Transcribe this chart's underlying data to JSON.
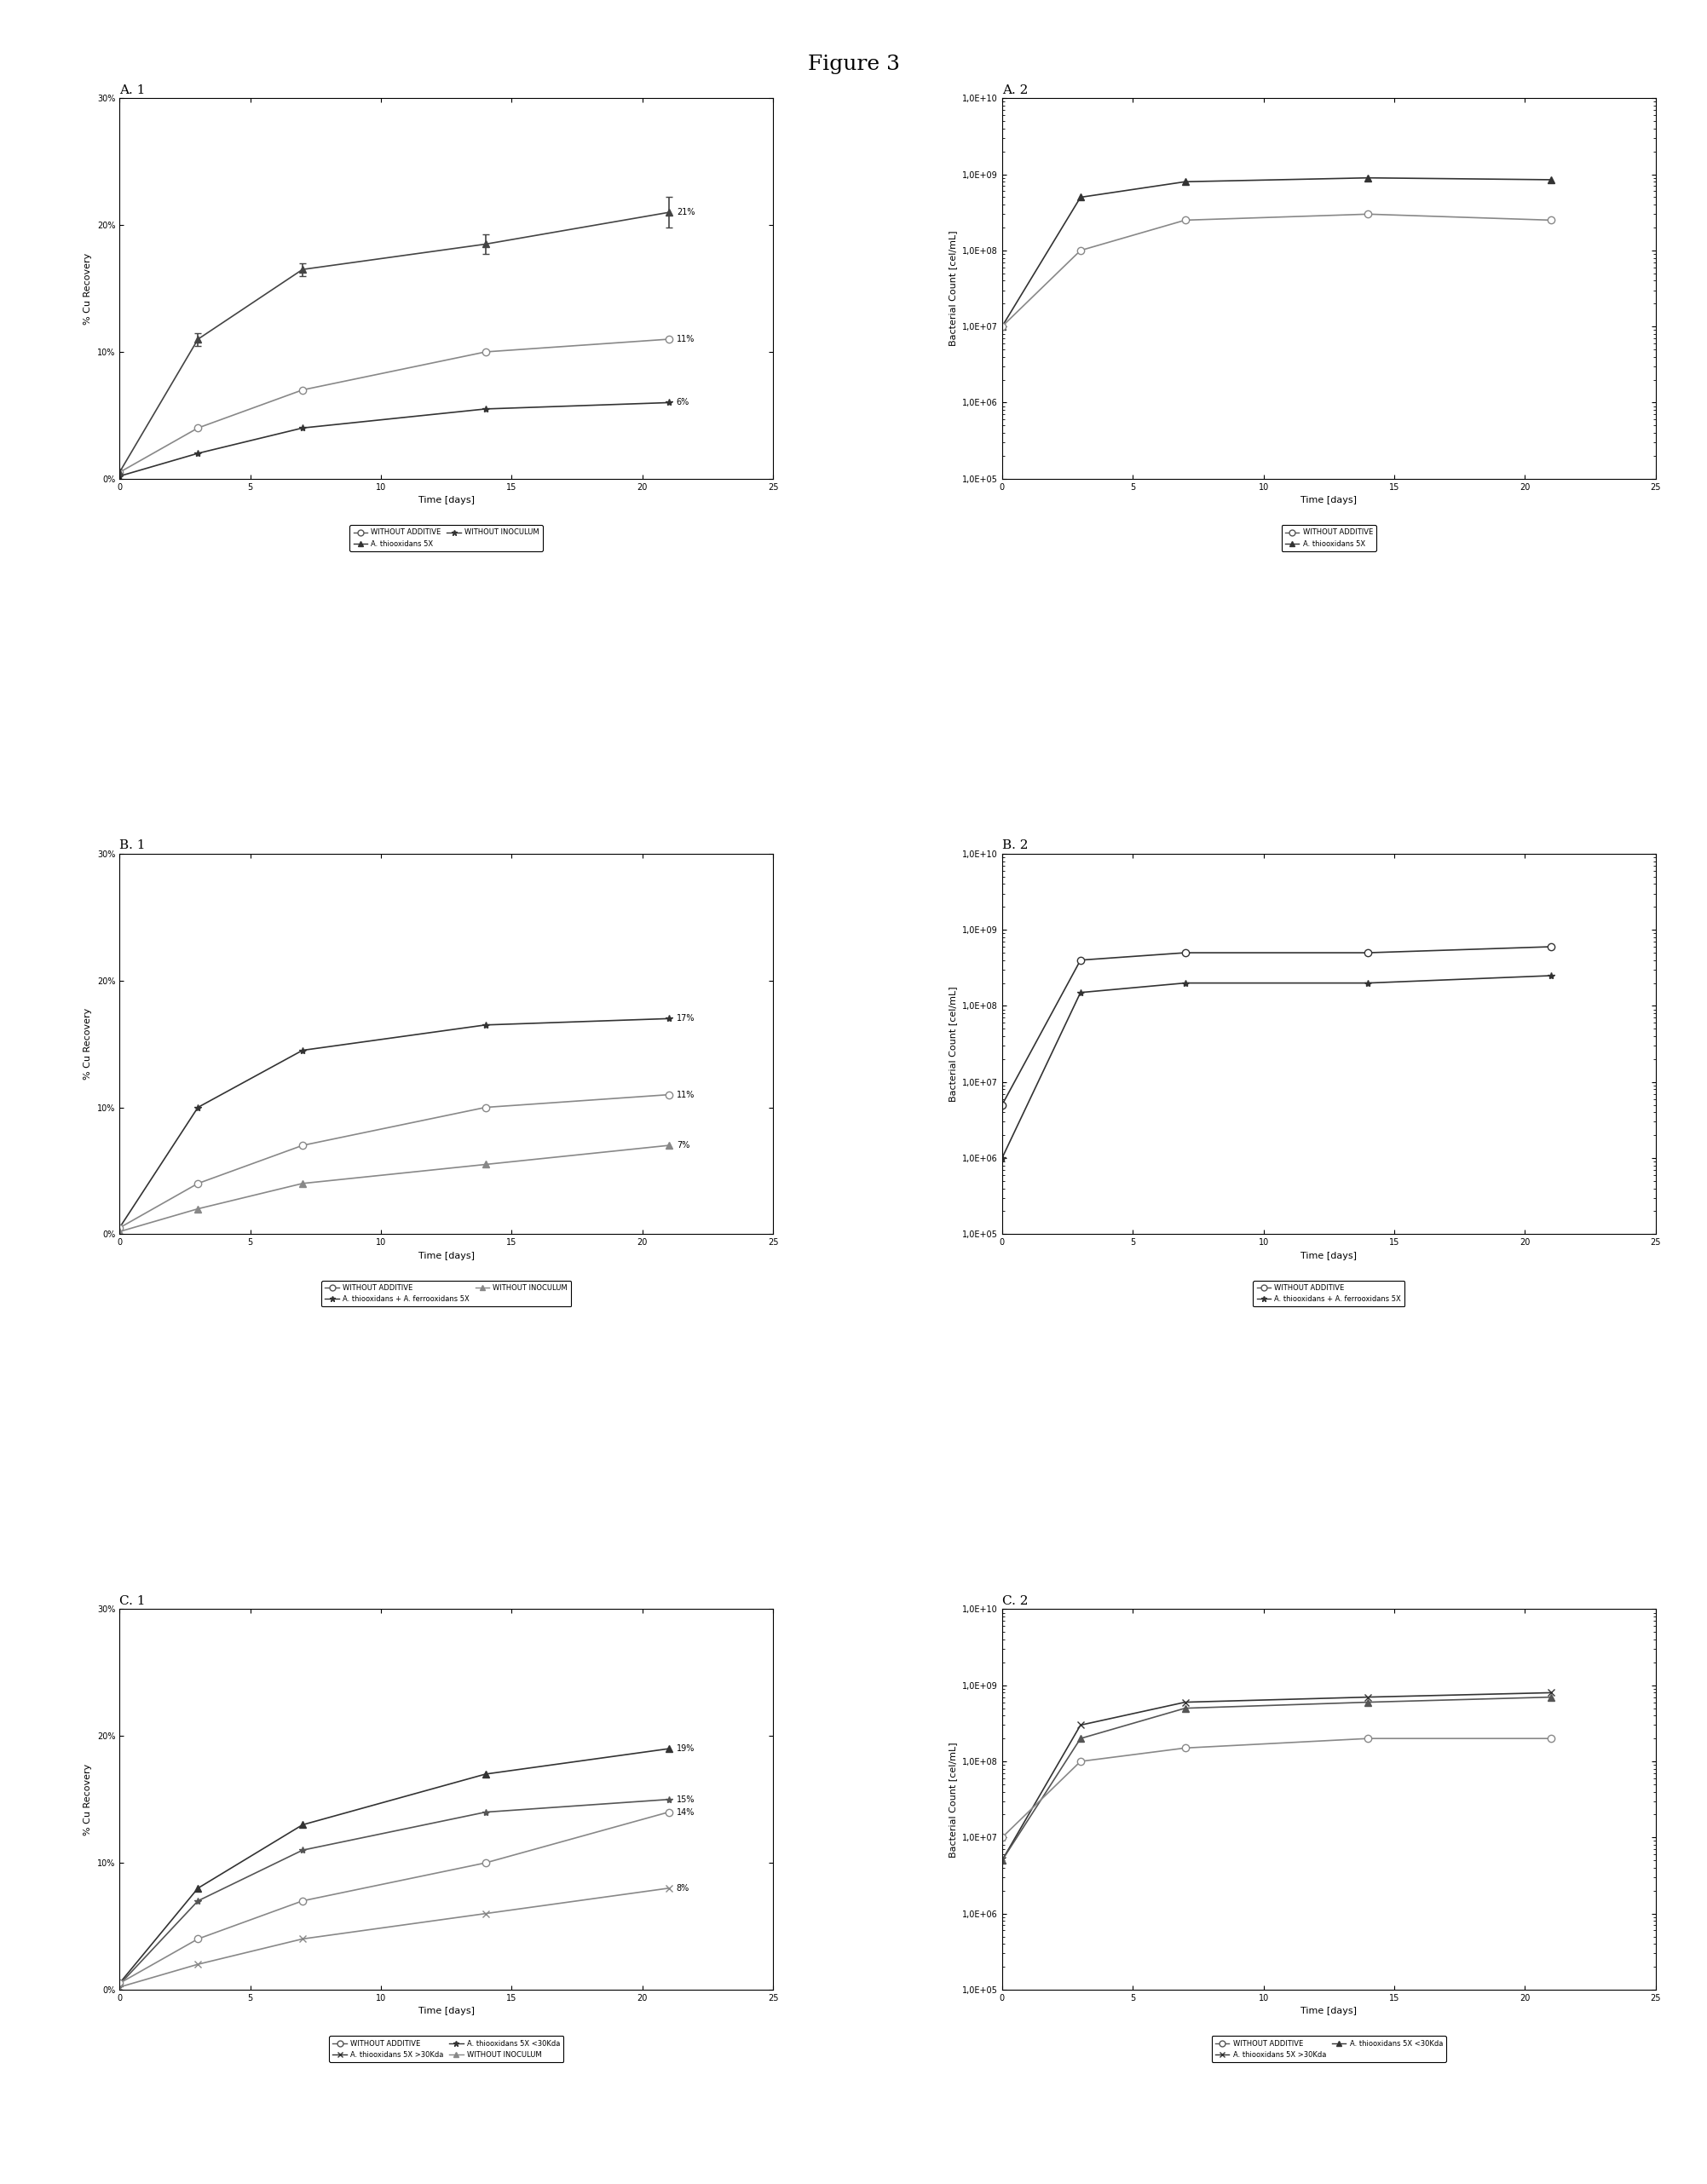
{
  "figure_title": "Figure 3",
  "background_color": "#ffffff",
  "panels": {
    "A1": {
      "title": "A. 1",
      "xlabel": "Time [days]",
      "ylabel": "% Cu Recovery",
      "ylim": [
        0,
        0.3
      ],
      "xlim": [
        0,
        25
      ],
      "yticks": [
        0.0,
        0.1,
        0.2,
        0.3
      ],
      "ytick_labels": [
        "0%",
        "10%",
        "20%",
        "30%"
      ],
      "xticks": [
        0,
        5,
        10,
        15,
        20,
        25
      ],
      "series": [
        {
          "label": "A. thiooxidans 5X",
          "x": [
            0,
            3,
            7,
            14,
            21
          ],
          "y": [
            0.005,
            0.11,
            0.165,
            0.185,
            0.21
          ],
          "yerr": [
            0.001,
            0.005,
            0.005,
            0.008,
            0.012
          ],
          "marker": "^",
          "color": "#444444",
          "linestyle": "-",
          "markersize": 6,
          "label_end": "21%"
        },
        {
          "label": "WITHOUT ADDITIVE",
          "x": [
            0,
            3,
            7,
            14,
            21
          ],
          "y": [
            0.005,
            0.04,
            0.07,
            0.1,
            0.11
          ],
          "yerr": null,
          "marker": "o",
          "color": "#888888",
          "linestyle": "-",
          "markersize": 6,
          "markerfacecolor": "white",
          "label_end": "11%"
        },
        {
          "label": "WITHOUT INOCULUM",
          "x": [
            0,
            3,
            7,
            14,
            21
          ],
          "y": [
            0.002,
            0.02,
            0.04,
            0.055,
            0.06
          ],
          "yerr": null,
          "marker": "*",
          "color": "#333333",
          "linestyle": "-",
          "markersize": 6,
          "label_end": "6%"
        }
      ],
      "legend_entries": [
        {
          "label": "WITHOUT ADDITIVE",
          "marker": "o",
          "markerfacecolor": "white",
          "color": "#555555"
        },
        {
          "label": "A. thiooxidans 5X",
          "marker": "^",
          "color": "#333333"
        },
        {
          "label": "WITHOUT INOCULUM",
          "marker": "*",
          "color": "#333333"
        }
      ]
    },
    "A2": {
      "title": "A. 2",
      "xlabel": "Time [days]",
      "ylabel": "Bacterial Count [cel/mL]",
      "ylim_log": [
        100000.0,
        10000000000.0
      ],
      "xlim": [
        0,
        25
      ],
      "xticks": [
        0,
        5,
        10,
        15,
        20,
        25
      ],
      "yticks_log": [
        100000.0,
        1000000.0,
        10000000.0,
        100000000.0,
        1000000000.0,
        10000000000.0
      ],
      "ytick_labels_log": [
        "1,0E+05",
        "1,0E+06",
        "1,0E+07",
        "1,0E+08",
        "1,0E+09",
        "1,0E+10"
      ],
      "series": [
        {
          "label": "A. thiooxidans 5X",
          "x": [
            0,
            3,
            7,
            14,
            21
          ],
          "y": [
            10000000.0,
            500000000.0,
            800000000.0,
            900000000.0,
            850000000.0
          ],
          "marker": "^",
          "color": "#333333",
          "linestyle": "-",
          "markersize": 6
        },
        {
          "label": "WITHOUT ADDITIVE",
          "x": [
            0,
            3,
            7,
            14,
            21
          ],
          "y": [
            10000000.0,
            100000000.0,
            250000000.0,
            300000000.0,
            250000000.0
          ],
          "marker": "o",
          "color": "#888888",
          "linestyle": "-",
          "markersize": 6,
          "markerfacecolor": "white"
        }
      ],
      "legend_entries": [
        {
          "label": "WITHOUT ADDITIVE",
          "marker": "o",
          "markerfacecolor": "white",
          "color": "#555555"
        },
        {
          "label": "A. thiooxidans 5X",
          "marker": "^",
          "color": "#333333"
        }
      ]
    },
    "B1": {
      "title": "B. 1",
      "xlabel": "Time [days]",
      "ylabel": "% Cu Recovery",
      "ylim": [
        0,
        0.3
      ],
      "xlim": [
        0,
        25
      ],
      "yticks": [
        0.0,
        0.1,
        0.2,
        0.3
      ],
      "ytick_labels": [
        "0%",
        "10%",
        "20%",
        "30%"
      ],
      "xticks": [
        0,
        5,
        10,
        15,
        20,
        25
      ],
      "series": [
        {
          "label": "A. thiooxidans + A. ferrooxidans 5X",
          "x": [
            0,
            3,
            7,
            14,
            21
          ],
          "y": [
            0.005,
            0.1,
            0.145,
            0.165,
            0.17
          ],
          "yerr": null,
          "marker": "*",
          "color": "#333333",
          "linestyle": "-",
          "markersize": 6,
          "label_end": "17%"
        },
        {
          "label": "WITHOUT ADDITIVE",
          "x": [
            0,
            3,
            7,
            14,
            21
          ],
          "y": [
            0.005,
            0.04,
            0.07,
            0.1,
            0.11
          ],
          "yerr": null,
          "marker": "o",
          "color": "#888888",
          "linestyle": "-",
          "markersize": 6,
          "markerfacecolor": "white",
          "label_end": "11%"
        },
        {
          "label": "WITHOUT INOCULUM",
          "x": [
            0,
            3,
            7,
            14,
            21
          ],
          "y": [
            0.002,
            0.02,
            0.04,
            0.055,
            0.07
          ],
          "yerr": null,
          "marker": "^",
          "color": "#888888",
          "linestyle": "-",
          "markersize": 6,
          "label_end": "7%"
        }
      ],
      "legend_entries": [
        {
          "label": "WITHOUT ADDITIVE",
          "marker": "o",
          "markerfacecolor": "white",
          "color": "#555555"
        },
        {
          "label": "A. thiooxidans + A. ferrooxidans 5X",
          "marker": "*",
          "color": "#333333"
        },
        {
          "label": "WITHOUT INOCULUM",
          "marker": "^",
          "color": "#888888"
        }
      ]
    },
    "B2": {
      "title": "B. 2",
      "xlabel": "Time [days]",
      "ylabel": "Bacterial Count [cel/mL]",
      "ylim_log": [
        100000.0,
        10000000000.0
      ],
      "xlim": [
        0,
        25
      ],
      "xticks": [
        0,
        5,
        10,
        15,
        20,
        25
      ],
      "yticks_log": [
        100000.0,
        1000000.0,
        10000000.0,
        100000000.0,
        1000000000.0,
        10000000000.0
      ],
      "ytick_labels_log": [
        "1,0E+05",
        "1,0E+06",
        "1,0E+07",
        "1,0E+08",
        "1,0E+09",
        "1,0E+10"
      ],
      "series": [
        {
          "label": "WITHOUT ADDITIVE",
          "x": [
            0,
            3,
            7,
            14,
            21
          ],
          "y": [
            5000000.0,
            400000000.0,
            500000000.0,
            500000000.0,
            600000000.0
          ],
          "marker": "o",
          "color": "#333333",
          "linestyle": "-",
          "markersize": 6,
          "markerfacecolor": "white"
        },
        {
          "label": "A. thiooxidans + A. ferrooxidans 5X",
          "x": [
            0,
            3,
            7,
            14,
            21
          ],
          "y": [
            1000000.0,
            150000000.0,
            200000000.0,
            200000000.0,
            250000000.0
          ],
          "marker": "*",
          "color": "#333333",
          "linestyle": "-",
          "markersize": 6
        }
      ],
      "legend_entries": [
        {
          "label": "WITHOUT ADDITIVE",
          "marker": "o",
          "markerfacecolor": "white",
          "color": "#555555"
        },
        {
          "label": "A. thiooxidans + A. ferrooxidans 5X",
          "marker": "*",
          "color": "#333333"
        }
      ]
    },
    "C1": {
      "title": "C. 1",
      "xlabel": "Time [days]",
      "ylabel": "% Cu Recovery",
      "ylim": [
        0,
        0.3
      ],
      "xlim": [
        0,
        25
      ],
      "yticks": [
        0.0,
        0.1,
        0.2,
        0.3
      ],
      "ytick_labels": [
        "0%",
        "10%",
        "20%",
        "30%"
      ],
      "xticks": [
        0,
        5,
        10,
        15,
        20,
        25
      ],
      "series": [
        {
          "label": "A. thiooxidans 5X >30Kda",
          "x": [
            0,
            3,
            7,
            14,
            21
          ],
          "y": [
            0.005,
            0.08,
            0.13,
            0.17,
            0.19
          ],
          "yerr": null,
          "marker": "^",
          "color": "#333333",
          "linestyle": "-",
          "markersize": 6,
          "label_end": "19%"
        },
        {
          "label": "A. thiooxidans 5X <30Kda",
          "x": [
            0,
            3,
            7,
            14,
            21
          ],
          "y": [
            0.004,
            0.07,
            0.11,
            0.14,
            0.15
          ],
          "yerr": null,
          "marker": "*",
          "color": "#555555",
          "linestyle": "-",
          "markersize": 6,
          "label_end": "15%"
        },
        {
          "label": "WITHOUT ADDITIVE",
          "x": [
            0,
            3,
            7,
            14,
            21
          ],
          "y": [
            0.005,
            0.04,
            0.07,
            0.1,
            0.14
          ],
          "yerr": null,
          "marker": "o",
          "color": "#888888",
          "linestyle": "-",
          "markersize": 6,
          "markerfacecolor": "white",
          "label_end": "14%"
        },
        {
          "label": "WITHOUT INOCULUM",
          "x": [
            0,
            3,
            7,
            14,
            21
          ],
          "y": [
            0.002,
            0.02,
            0.04,
            0.06,
            0.08
          ],
          "yerr": null,
          "marker": "x",
          "color": "#888888",
          "linestyle": "-",
          "markersize": 6,
          "label_end": "8%"
        }
      ],
      "legend_entries": [
        {
          "label": "WITHOUT ADDITIVE",
          "marker": "o",
          "markerfacecolor": "white",
          "color": "#555555"
        },
        {
          "label": "A. thiooxidans 5X >30Kda",
          "marker": "x",
          "color": "#333333"
        },
        {
          "label": "A. thiooxidans 5X <30Kda",
          "marker": "*",
          "color": "#333333"
        },
        {
          "label": "WITHOUT INOCULUM",
          "marker": "^",
          "color": "#888888"
        }
      ]
    },
    "C2": {
      "title": "C. 2",
      "xlabel": "Time [days]",
      "ylabel": "Bacterial Count [cel/mL]",
      "ylim_log": [
        100000.0,
        10000000000.0
      ],
      "xlim": [
        0,
        25
      ],
      "xticks": [
        0,
        5,
        10,
        15,
        20,
        25
      ],
      "yticks_log": [
        100000.0,
        1000000.0,
        10000000.0,
        100000000.0,
        1000000000.0,
        10000000000.0
      ],
      "ytick_labels_log": [
        "1,0E+05",
        "1,0E+06",
        "1,0E+07",
        "1,0E+08",
        "1,0E+09",
        "1,0E+10"
      ],
      "series": [
        {
          "label": "A. thiooxidans 5X >30Kda",
          "x": [
            0,
            3,
            7,
            14,
            21
          ],
          "y": [
            5000000.0,
            300000000.0,
            600000000.0,
            700000000.0,
            800000000.0
          ],
          "marker": "x",
          "color": "#333333",
          "linestyle": "-",
          "markersize": 6
        },
        {
          "label": "A. thiooxidans 5X <30Kda",
          "x": [
            0,
            3,
            7,
            14,
            21
          ],
          "y": [
            5000000.0,
            200000000.0,
            500000000.0,
            600000000.0,
            700000000.0
          ],
          "marker": "^",
          "color": "#555555",
          "linestyle": "-",
          "markersize": 6
        },
        {
          "label": "WITHOUT ADDITIVE",
          "x": [
            0,
            3,
            7,
            14,
            21
          ],
          "y": [
            10000000.0,
            100000000.0,
            150000000.0,
            200000000.0,
            200000000.0
          ],
          "marker": "o",
          "color": "#888888",
          "linestyle": "-",
          "markersize": 6,
          "markerfacecolor": "white"
        }
      ],
      "legend_entries": [
        {
          "label": "WITHOUT ADDITIVE",
          "marker": "o",
          "markerfacecolor": "white",
          "color": "#555555"
        },
        {
          "label": "A. thiooxidans 5X >30Kda",
          "marker": "x",
          "color": "#333333"
        },
        {
          "label": "A. thiooxidans 5X <30Kda",
          "marker": "^",
          "color": "#333333"
        }
      ]
    }
  }
}
